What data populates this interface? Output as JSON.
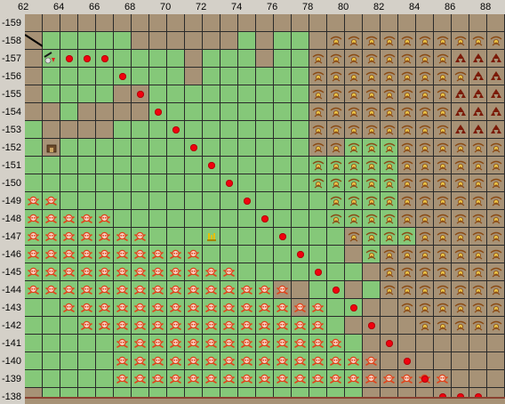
{
  "x_axis_labels": [
    "62",
    "64",
    "66",
    "68",
    "70",
    "72",
    "74",
    "76",
    "78",
    "80",
    "82",
    "84",
    "86",
    "88"
  ],
  "y_axis_labels": [
    "-159",
    "-158",
    "-157",
    "-156",
    "-155",
    "-154",
    "-153",
    "-152",
    "-151",
    "-150",
    "-149",
    "-148",
    "-147",
    "-146",
    "-145",
    "-144",
    "-143",
    "-142",
    "-141",
    "-140",
    "-139",
    "-138"
  ],
  "colors": {
    "grass": "#85c879",
    "dirt": "#a79276",
    "grid_line": "#2a2a2a",
    "route_dot": "#f2000e",
    "skull_icon": "#e0441c",
    "skull_dark_icon": "#7a1a08",
    "flower_icon": "#d9a93a",
    "building_icon": "#6b4a2a",
    "chest_icon": "#e6c000",
    "camp_icon": "#e0e0e0"
  },
  "icons": {
    "route": "route-dot-icon",
    "monster": "skull-crossbones-icon",
    "monster_strong": "dark-skull-icon",
    "resource": "flower-icon",
    "building": "building-icon",
    "treasure": "chest-icon",
    "camp": "camp-icon"
  }
}
